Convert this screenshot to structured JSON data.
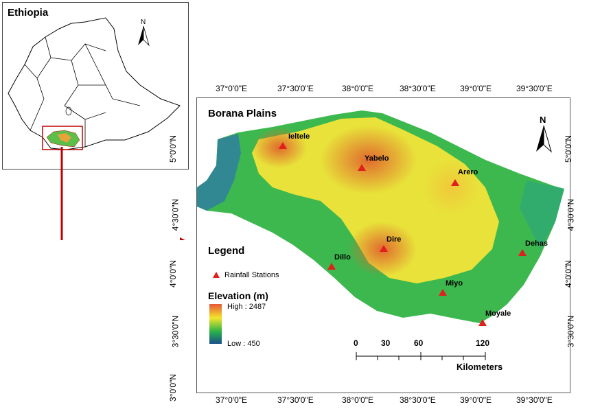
{
  "inset": {
    "title": "Ethiopia",
    "north": "N"
  },
  "map": {
    "title": "Borana Plains",
    "north": "N",
    "top_ticks": [
      "37°0'0\"E",
      "37°30'0\"E",
      "38°0'0\"E",
      "38°30'0\"E",
      "39°0'0\"E",
      "39°30'0\"E"
    ],
    "bottom_ticks": [
      "37°0'0\"E",
      "37°30'0\"E",
      "38°0'0\"E",
      "38°30'0\"E",
      "39°0'0\"E",
      "39°30'0\"E"
    ],
    "left_ticks": [
      "5°0'0\"N",
      "4°30'0\"N",
      "4°0'0\"N",
      "3°30'0\"N",
      "3°0'0\"N"
    ],
    "right_ticks": [
      "5°0'0\"N",
      "4°30'0\"N",
      "4°0'0\"N",
      "3°30'0\"N"
    ],
    "stations": [
      "Ieltele",
      "Yabelo",
      "Arero",
      "Dire",
      "Dehas",
      "Dillo",
      "Miyo",
      "Moyale"
    ]
  },
  "legend": {
    "title": "Legend",
    "station_item": "Rainfall Stations",
    "elevation_title": "Elevation (m)",
    "high": "High : 2487",
    "low": "Low : 450",
    "colors": {
      "station": "#e0201c",
      "high": "#e8563a",
      "mid": "#f2e62a",
      "green": "#26b04a",
      "low": "#1b4f8a"
    }
  },
  "scalebar": {
    "ticks": [
      "0",
      "30",
      "60",
      "120"
    ],
    "unit": "Kilometers"
  }
}
